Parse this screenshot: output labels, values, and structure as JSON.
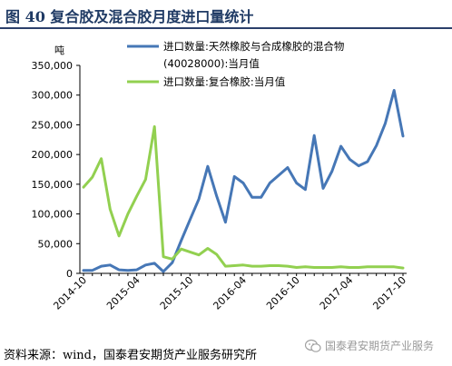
{
  "figure": {
    "title": "图 40 复合胶及混合胶月度进口量统计",
    "source": "资料来源：wind，国泰君安期货产业服务研究所",
    "watermark": "国泰君安期货产业服务"
  },
  "chart_data": {
    "type": "line",
    "ylabel": "吨",
    "ylim": [
      0,
      350000
    ],
    "yticks": [
      0,
      50000,
      100000,
      150000,
      200000,
      250000,
      300000,
      350000
    ],
    "ytick_labels": [
      "0",
      "50,000",
      "100,000",
      "150,000",
      "200,000",
      "250,000",
      "300,000",
      "350,000"
    ],
    "x": [
      "2014-10",
      "2014-11",
      "2014-12",
      "2015-01",
      "2015-02",
      "2015-03",
      "2015-04",
      "2015-05",
      "2015-06",
      "2015-07",
      "2015-08",
      "2015-09",
      "2015-10",
      "2015-11",
      "2015-12",
      "2016-01",
      "2016-02",
      "2016-03",
      "2016-04",
      "2016-05",
      "2016-06",
      "2016-07",
      "2016-08",
      "2016-09",
      "2016-10",
      "2016-11",
      "2016-12",
      "2017-01",
      "2017-02",
      "2017-03",
      "2017-04",
      "2017-05",
      "2017-06",
      "2017-07",
      "2017-08",
      "2017-09",
      "2017-10"
    ],
    "xtick_labels": [
      "2014-10",
      "2015-04",
      "2015-10",
      "2016-04",
      "2016-10",
      "2017-04",
      "2017-10"
    ],
    "xtick_indices": [
      0,
      6,
      12,
      18,
      24,
      30,
      36
    ],
    "legend_position": "top",
    "series": [
      {
        "name": "进口数量:天然橡胶与合成橡胶的混合物(40028000):当月值",
        "color": "#4677b6",
        "values": [
          5000,
          5000,
          12000,
          14000,
          6000,
          5000,
          6000,
          14000,
          17000,
          3000,
          18000,
          55000,
          90000,
          125000,
          180000,
          130000,
          86000,
          163000,
          152000,
          128000,
          128000,
          152000,
          165000,
          178000,
          152000,
          141000,
          232000,
          143000,
          172000,
          214000,
          192000,
          181000,
          188000,
          215000,
          252000,
          308000,
          231000
        ]
      },
      {
        "name": "进口数量:复合橡胶:当月值",
        "color": "#92d050",
        "values": [
          145000,
          162000,
          193000,
          108000,
          63000,
          100000,
          130000,
          158000,
          247000,
          28000,
          24000,
          41000,
          36000,
          31000,
          42000,
          32000,
          12000,
          13000,
          14000,
          12000,
          12000,
          13000,
          13000,
          12000,
          10000,
          11000,
          10000,
          10000,
          10000,
          11000,
          10000,
          10000,
          11000,
          11000,
          11000,
          11000,
          9000
        ]
      }
    ],
    "legend_lines": [
      [
        "进口数量:天然橡胶与合成橡胶的混合物",
        "(40028000):当月值"
      ],
      [
        "进口数量:复合橡胶:当月值"
      ]
    ]
  }
}
